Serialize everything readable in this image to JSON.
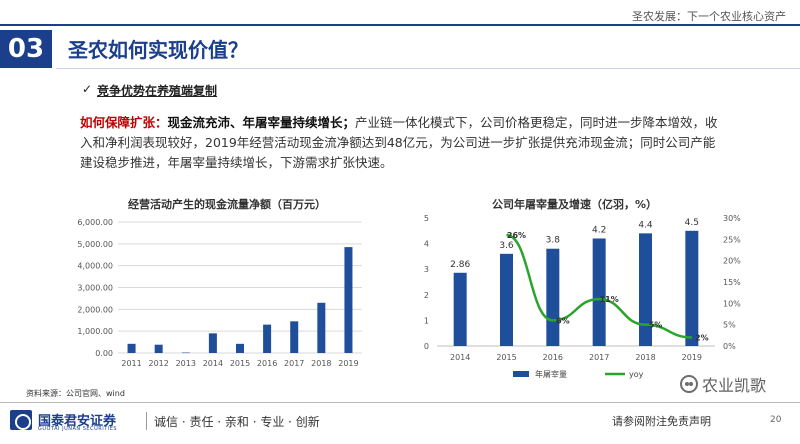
{
  "header": {
    "right_text": "圣农发展：下一个农业核心资产"
  },
  "section": {
    "number": "03",
    "title": "圣农如何实现价值？"
  },
  "subhead": {
    "check": "✓",
    "text": "竞争优势在养殖端复制"
  },
  "paragraph": {
    "red": "如何保障扩张：",
    "bold": "现金流充沛、年屠宰量持续增长；",
    "rest": "产业链一体化模式下，公司价格更稳定，同时进一步降本增效，收入和净利润表现较好，2019年经营活动现金流净额达到48亿元，为公司进一步扩张提供充沛现金流；同时公司产能建设稳步推进，年屠宰量持续增长，下游需求扩张快速。"
  },
  "colors": {
    "brand": "#1b3f8b",
    "bar": "#1f4e9a",
    "line": "#2aa52a",
    "red": "#c00000"
  },
  "chart_data": [
    {
      "type": "bar",
      "title": "经营活动产生的现金流量净额（百万元）",
      "categories": [
        "2011",
        "2012",
        "2013",
        "2014",
        "2015",
        "2016",
        "2017",
        "2018",
        "2019"
      ],
      "values": [
        420,
        380,
        20,
        900,
        420,
        1300,
        1450,
        2300,
        4850
      ],
      "ylim": [
        0,
        6000
      ],
      "yticks": [
        "0.00",
        "1,000.00",
        "2,000.00",
        "3,000.00",
        "4,000.00",
        "5,000.00",
        "6,000.00"
      ],
      "grid": true
    },
    {
      "type": "bar",
      "title": "公司年屠宰量及增速（亿羽，%）",
      "categories": [
        "2014",
        "2015",
        "2016",
        "2017",
        "2018",
        "2019"
      ],
      "series": [
        {
          "name": "年屠宰量",
          "type": "bar",
          "values": [
            2.86,
            3.6,
            3.8,
            4.2,
            4.4,
            4.5
          ],
          "labels": [
            "2.86",
            "3.6",
            "3.8",
            "4.2",
            "4.4",
            "4.5"
          ]
        },
        {
          "name": "yoy",
          "type": "line",
          "values": [
            null,
            26,
            6,
            11,
            5,
            2
          ],
          "labels": [
            "",
            "26%",
            "6%",
            "11%",
            "5%",
            "2%"
          ]
        }
      ],
      "ylim_left": [
        0,
        5
      ],
      "yticks_left": [
        "0",
        "1",
        "2",
        "3",
        "4",
        "5"
      ],
      "ylim_right": [
        0,
        30
      ],
      "yticks_right": [
        "0%",
        "5%",
        "10%",
        "15%",
        "20%",
        "25%",
        "30%"
      ],
      "legend": "bottom"
    }
  ],
  "footer": {
    "source": "资料来源：公司官网、wind",
    "logo_name": "国泰君安证券",
    "logo_en": "GUOTAI JUNAN SECURITIES",
    "slogan": "诚信 · 责任 · 亲和 · 专业 · 创新",
    "disclaimer": "请参阅附注免责声明",
    "page": "20",
    "watermark": "农业凯歌"
  }
}
